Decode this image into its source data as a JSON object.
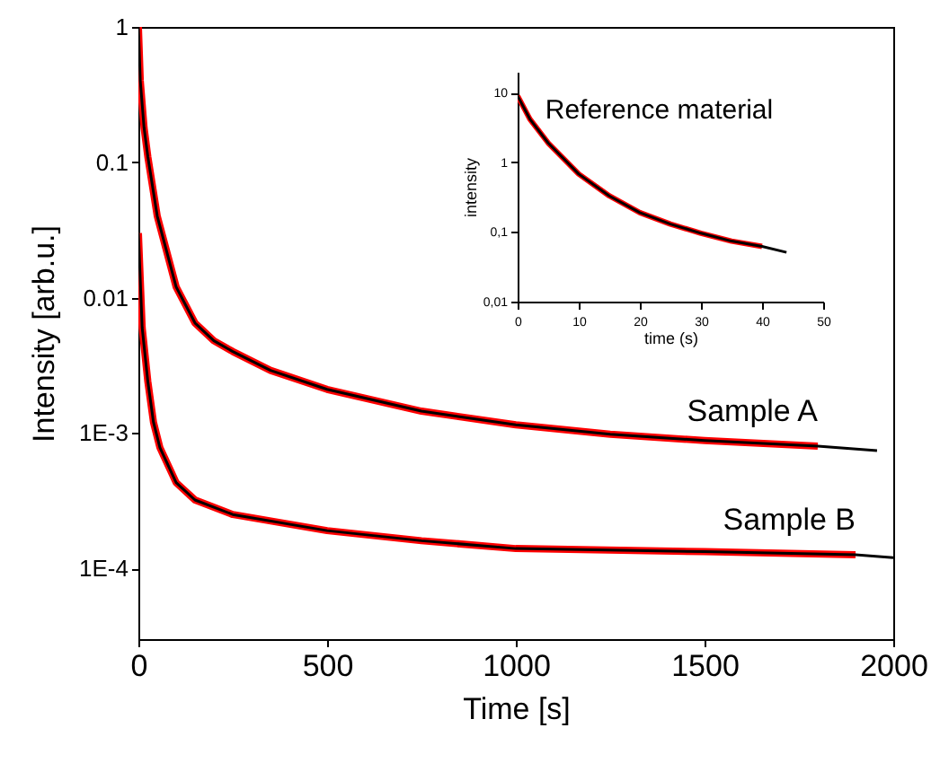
{
  "chart_data": [
    {
      "type": "line",
      "xlabel": "Time  [s]",
      "ylabel": "Intensity [arb.u.]",
      "log": true,
      "xlim": [
        0,
        2000
      ],
      "ylim": [
        3e-05,
        1
      ],
      "xticks": [
        0,
        500,
        1000,
        1500,
        2000
      ],
      "yticks": [
        1,
        0.1,
        0.01,
        {
          "value": 0.001,
          "label": "1E-3"
        },
        {
          "value": 0.0001,
          "label": "1E-4"
        }
      ],
      "series": [
        {
          "name": "Sample A",
          "color": "#ff0000",
          "x": [
            0,
            5,
            15,
            25,
            50,
            100,
            150,
            200,
            250,
            350,
            500,
            750,
            1000,
            1250,
            1500,
            1800
          ],
          "values": [
            1,
            0.4,
            0.18,
            0.11,
            0.04,
            0.012,
            0.0065,
            0.0048,
            0.004,
            0.0029,
            0.0021,
            0.00145,
            0.00115,
            0.00098,
            0.00088,
            0.0008
          ]
        },
        {
          "name": "Sample B",
          "color": "#ff0000",
          "x": [
            0,
            10,
            25,
            40,
            57,
            100,
            150,
            250,
            500,
            750,
            1000,
            1500,
            1900
          ],
          "values": [
            0.03,
            0.006,
            0.0024,
            0.0012,
            0.00078,
            0.00043,
            0.00032,
            0.00025,
            0.00019,
            0.00016,
            0.00014,
            0.000133,
            0.000126
          ]
        },
        {
          "color": "#000000",
          "x": [
            0,
            5,
            15,
            25,
            50,
            100,
            150,
            200,
            250,
            350,
            500,
            750,
            1000,
            1250,
            1500,
            1800,
            1957
          ],
          "values": [
            1,
            0.4,
            0.18,
            0.11,
            0.04,
            0.012,
            0.0065,
            0.0048,
            0.004,
            0.0029,
            0.0021,
            0.00145,
            0.00115,
            0.00098,
            0.00088,
            0.0008,
            0.00074
          ]
        },
        {
          "color": "#000000",
          "x": [
            0,
            10,
            25,
            40,
            57,
            100,
            150,
            250,
            500,
            750,
            1000,
            1500,
            1900,
            2000
          ],
          "values": [
            0.03,
            0.006,
            0.0024,
            0.0012,
            0.00078,
            0.00043,
            0.00032,
            0.00025,
            0.00019,
            0.00016,
            0.00014,
            0.000133,
            0.000126,
            0.00012
          ]
        }
      ]
    },
    {
      "type": "line",
      "title": "Reference material",
      "xlabel": "time (s)",
      "ylabel": "intensity",
      "log": true,
      "xlim": [
        0,
        50
      ],
      "ylim": [
        0.01,
        20
      ],
      "xticks": [
        0,
        10,
        20,
        30,
        40,
        50
      ],
      "yticks": [
        {
          "value": 0.01,
          "label": "0,01"
        },
        {
          "value": 0.1,
          "label": "0,1"
        },
        1,
        10
      ],
      "series": [
        {
          "color": "#ff0000",
          "x": [
            0,
            2,
            5,
            10,
            15,
            20,
            25,
            30,
            35,
            40
          ],
          "values": [
            9,
            4.2,
            1.9,
            0.68,
            0.33,
            0.19,
            0.13,
            0.096,
            0.074,
            0.062
          ]
        },
        {
          "color": "#000000",
          "x": [
            0,
            2,
            5,
            10,
            15,
            20,
            25,
            30,
            35,
            40,
            44
          ],
          "values": [
            9,
            4.2,
            1.9,
            0.68,
            0.33,
            0.19,
            0.13,
            0.096,
            0.074,
            0.062,
            0.051
          ]
        }
      ]
    }
  ]
}
